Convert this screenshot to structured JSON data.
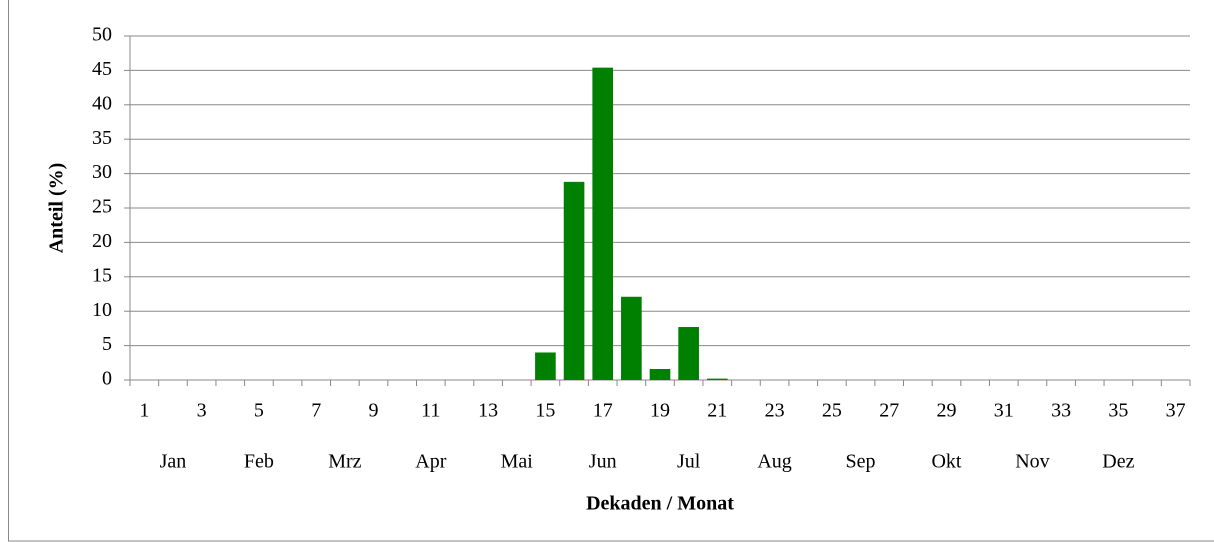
{
  "chart_data": {
    "type": "bar",
    "categories": [
      1,
      null,
      3,
      null,
      5,
      null,
      7,
      null,
      9,
      null,
      11,
      null,
      13,
      null,
      15,
      null,
      17,
      null,
      19,
      null,
      21,
      null,
      23,
      null,
      25,
      null,
      27,
      null,
      29,
      null,
      31,
      null,
      33,
      null,
      35,
      null,
      37
    ],
    "values": [
      0,
      0,
      0,
      0,
      0,
      0,
      0,
      0,
      0,
      0,
      0,
      0,
      0,
      0,
      4,
      28.8,
      45.4,
      12.1,
      1.6,
      7.7,
      0.2,
      0,
      0,
      0,
      0,
      0,
      0,
      0,
      0,
      0,
      0,
      0,
      0,
      0,
      0,
      0,
      0
    ],
    "months": [
      "Jan",
      "Feb",
      "Mrz",
      "Apr",
      "Mai",
      "Jun",
      "Jul",
      "Aug",
      "Sep",
      "Okt",
      "Nov",
      "Dez"
    ],
    "color": "#008000",
    "ylim": [
      0,
      50
    ],
    "yticks": [
      0,
      5,
      10,
      15,
      20,
      25,
      30,
      35,
      40,
      45,
      50
    ],
    "grid": true,
    "ylabel": "Anteil (%)",
    "xlabel": "Dekaden / Monat"
  }
}
